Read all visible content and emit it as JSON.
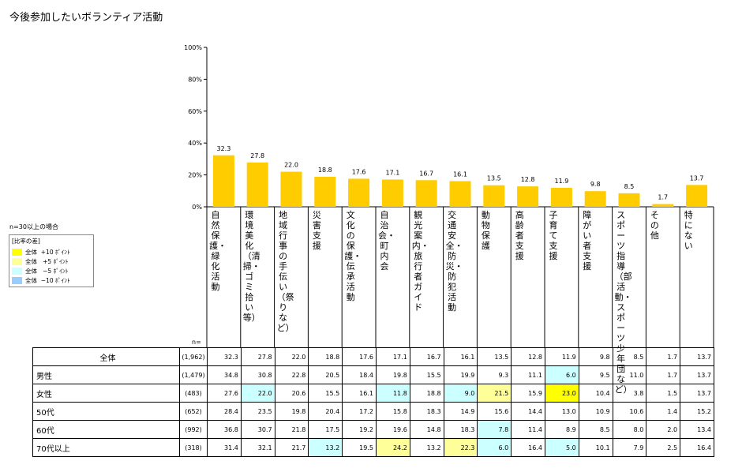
{
  "title": "今後参加したいボランティア活動",
  "note": "n=30以上の場合",
  "legend": {
    "title": "[比率の差]",
    "items": [
      {
        "label": "全体  +10 ﾎﾟｲﾝﾄ",
        "color": "#ffff00"
      },
      {
        "label": "全体   +5 ﾎﾟｲﾝﾄ",
        "color": "#ffff99"
      },
      {
        "label": "全体   −5 ﾎﾟｲﾝﾄ",
        "color": "#ccffff"
      },
      {
        "label": "全体  −10 ﾎﾟｲﾝﾄ",
        "color": "#99ccff"
      }
    ]
  },
  "chart_data": {
    "type": "bar",
    "title": "今後参加したいボランティア活動",
    "categories": [
      "自然保護・緑化活動",
      "環境美化（清掃・ゴミ拾い等）",
      "地域行事の手伝い（祭りなど）",
      "災害支援",
      "文化の保護・伝承活動",
      "自治会・町内会",
      "観光案内・旅行者ガイド",
      "交通安全・防災・防犯活動",
      "動物保護",
      "高齢者支援",
      "子育て支援",
      "障がい者支援",
      "スポーツ指導（部活動・スポーツ少年団など）",
      "その他",
      "特にない"
    ],
    "values": [
      32.3,
      27.8,
      22.0,
      18.8,
      17.6,
      17.1,
      16.7,
      16.1,
      13.5,
      12.8,
      11.9,
      9.8,
      8.5,
      1.7,
      13.7
    ],
    "value_labels": [
      "32.3",
      "27.8",
      "22.0",
      "18.8",
      "17.6",
      "17.1",
      "16.7",
      "16.1",
      "13.5",
      "12.8",
      "11.9",
      "9.8",
      "8.5",
      "1.7",
      "13.7"
    ],
    "yticks": [
      "0%",
      "20%",
      "40%",
      "60%",
      "80%",
      "100%"
    ],
    "ylim": [
      0,
      100
    ],
    "bar_color": "#ffcc00"
  },
  "table": {
    "n_header": "n=",
    "highlight_colors": {
      "p10": "#ffff00",
      "p5": "#ffff99",
      "m5": "#ccffff",
      "m10": "#99ccff"
    },
    "rows": [
      {
        "label": "全体",
        "n": "(1,962)",
        "values": [
          "32.3",
          "27.8",
          "22.0",
          "18.8",
          "17.6",
          "17.1",
          "16.7",
          "16.1",
          "13.5",
          "12.8",
          "11.9",
          "9.8",
          "8.5",
          "1.7",
          "13.7"
        ],
        "hl": [
          "",
          "",
          "",
          "",
          "",
          "",
          "",
          "",
          "",
          "",
          "",
          "",
          "",
          "",
          ""
        ]
      },
      {
        "label": "男性",
        "n": "(1,479)",
        "values": [
          "34.8",
          "30.8",
          "22.8",
          "20.5",
          "18.4",
          "19.8",
          "15.5",
          "19.9",
          "9.3",
          "11.1",
          "6.0",
          "9.5",
          "11.0",
          "1.7",
          "13.7"
        ],
        "hl": [
          "",
          "",
          "",
          "",
          "",
          "",
          "",
          "",
          "",
          "",
          "m5",
          "",
          "",
          "",
          ""
        ]
      },
      {
        "label": "女性",
        "n": "(483)",
        "values": [
          "27.6",
          "22.0",
          "20.6",
          "15.5",
          "16.1",
          "11.8",
          "18.8",
          "9.0",
          "21.5",
          "15.9",
          "23.0",
          "10.4",
          "3.8",
          "1.5",
          "13.7"
        ],
        "hl": [
          "",
          "m5",
          "",
          "",
          "",
          "m5",
          "",
          "m5",
          "p5",
          "",
          "p10",
          "",
          "",
          "",
          ""
        ]
      },
      {
        "label": "50代",
        "n": "(652)",
        "values": [
          "28.4",
          "23.5",
          "19.8",
          "20.4",
          "17.2",
          "15.8",
          "18.3",
          "14.9",
          "15.6",
          "14.4",
          "13.0",
          "10.9",
          "10.6",
          "1.4",
          "15.2"
        ],
        "hl": [
          "",
          "",
          "",
          "",
          "",
          "",
          "",
          "",
          "",
          "",
          "",
          "",
          "",
          "",
          ""
        ]
      },
      {
        "label": "60代",
        "n": "(992)",
        "values": [
          "36.8",
          "30.7",
          "21.8",
          "17.5",
          "19.2",
          "19.6",
          "14.8",
          "18.3",
          "7.8",
          "11.4",
          "8.9",
          "8.5",
          "8.0",
          "2.0",
          "13.4"
        ],
        "hl": [
          "",
          "",
          "",
          "",
          "",
          "",
          "",
          "",
          "m5",
          "",
          "",
          "",
          "",
          "",
          ""
        ]
      },
      {
        "label": "70代以上",
        "n": "(318)",
        "values": [
          "31.4",
          "32.1",
          "21.7",
          "13.2",
          "19.5",
          "24.2",
          "13.2",
          "22.3",
          "6.0",
          "16.4",
          "5.0",
          "10.1",
          "7.9",
          "2.5",
          "16.4"
        ],
        "hl": [
          "",
          "",
          "",
          "m5",
          "",
          "p5",
          "",
          "p5",
          "m5",
          "",
          "m5",
          "",
          "",
          "",
          ""
        ]
      }
    ]
  }
}
